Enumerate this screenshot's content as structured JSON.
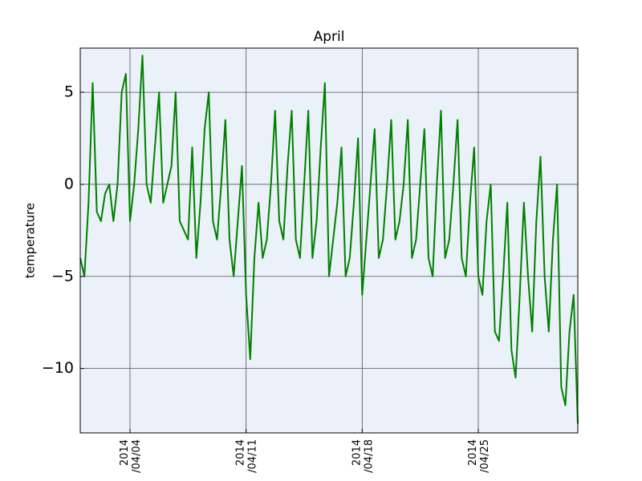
{
  "chart_data": {
    "type": "line",
    "title": "April",
    "ylabel": "temperature",
    "x": [
      "2014-04-01T00:00",
      "2014-04-01T06:00",
      "2014-04-01T12:00",
      "2014-04-01T18:00",
      "2014-04-02T00:00",
      "2014-04-02T06:00",
      "2014-04-02T12:00",
      "2014-04-02T18:00",
      "2014-04-03T00:00",
      "2014-04-03T06:00",
      "2014-04-03T12:00",
      "2014-04-03T18:00",
      "2014-04-04T00:00",
      "2014-04-04T06:00",
      "2014-04-04T12:00",
      "2014-04-04T18:00",
      "2014-04-05T00:00",
      "2014-04-05T06:00",
      "2014-04-05T12:00",
      "2014-04-05T18:00",
      "2014-04-06T00:00",
      "2014-04-06T06:00",
      "2014-04-06T12:00",
      "2014-04-06T18:00",
      "2014-04-07T00:00",
      "2014-04-07T06:00",
      "2014-04-07T12:00",
      "2014-04-07T18:00",
      "2014-04-08T00:00",
      "2014-04-08T06:00",
      "2014-04-08T12:00",
      "2014-04-08T18:00",
      "2014-04-09T00:00",
      "2014-04-09T06:00",
      "2014-04-09T12:00",
      "2014-04-09T18:00",
      "2014-04-10T00:00",
      "2014-04-10T06:00",
      "2014-04-10T12:00",
      "2014-04-10T18:00",
      "2014-04-11T00:00",
      "2014-04-11T06:00",
      "2014-04-11T12:00",
      "2014-04-11T18:00",
      "2014-04-12T00:00",
      "2014-04-12T06:00",
      "2014-04-12T12:00",
      "2014-04-12T18:00",
      "2014-04-13T00:00",
      "2014-04-13T06:00",
      "2014-04-13T12:00",
      "2014-04-13T18:00",
      "2014-04-14T00:00",
      "2014-04-14T06:00",
      "2014-04-14T12:00",
      "2014-04-14T18:00",
      "2014-04-15T00:00",
      "2014-04-15T06:00",
      "2014-04-15T12:00",
      "2014-04-15T18:00",
      "2014-04-16T00:00",
      "2014-04-16T06:00",
      "2014-04-16T12:00",
      "2014-04-16T18:00",
      "2014-04-17T00:00",
      "2014-04-17T06:00",
      "2014-04-17T12:00",
      "2014-04-17T18:00",
      "2014-04-18T00:00",
      "2014-04-18T06:00",
      "2014-04-18T12:00",
      "2014-04-18T18:00",
      "2014-04-19T00:00",
      "2014-04-19T06:00",
      "2014-04-19T12:00",
      "2014-04-19T18:00",
      "2014-04-20T00:00",
      "2014-04-20T06:00",
      "2014-04-20T12:00",
      "2014-04-20T18:00",
      "2014-04-21T00:00",
      "2014-04-21T06:00",
      "2014-04-21T12:00",
      "2014-04-21T18:00",
      "2014-04-22T00:00",
      "2014-04-22T06:00",
      "2014-04-22T12:00",
      "2014-04-22T18:00",
      "2014-04-23T00:00",
      "2014-04-23T06:00",
      "2014-04-23T12:00",
      "2014-04-23T18:00",
      "2014-04-24T00:00",
      "2014-04-24T06:00",
      "2014-04-24T12:00",
      "2014-04-24T18:00",
      "2014-04-25T00:00",
      "2014-04-25T06:00",
      "2014-04-25T12:00",
      "2014-04-25T18:00",
      "2014-04-26T00:00",
      "2014-04-26T06:00",
      "2014-04-26T12:00",
      "2014-04-26T18:00",
      "2014-04-27T00:00",
      "2014-04-27T06:00",
      "2014-04-27T12:00",
      "2014-04-27T18:00",
      "2014-04-28T00:00",
      "2014-04-28T06:00",
      "2014-04-28T12:00",
      "2014-04-28T18:00",
      "2014-04-29T00:00",
      "2014-04-29T06:00",
      "2014-04-29T12:00",
      "2014-04-29T18:00",
      "2014-04-30T00:00",
      "2014-04-30T06:00",
      "2014-04-30T12:00",
      "2014-04-30T18:00",
      "2014-05-01T00:00"
    ],
    "series": [
      {
        "color": "#008000",
        "values": [
          -4,
          -5,
          -1,
          5.5,
          -1.5,
          -2,
          -0.5,
          0,
          -2,
          0,
          5,
          6,
          -2,
          0,
          3,
          7,
          0,
          -1,
          2,
          5,
          -1,
          0,
          1,
          5,
          -2,
          -2.5,
          -3,
          2,
          -4,
          -1,
          3,
          5,
          -2,
          -3,
          0,
          3.5,
          -3,
          -5,
          -2,
          1,
          -6,
          -9.5,
          -4,
          -1,
          -4,
          -3,
          0,
          4,
          -2,
          -3,
          1,
          4,
          -3,
          -4,
          0,
          4,
          -4,
          -2,
          2,
          5.5,
          -5,
          -3,
          -1,
          2,
          -5,
          -4,
          -1,
          2.5,
          -6,
          -3,
          0,
          3,
          -4,
          -3,
          0,
          3.5,
          -3,
          -2,
          0,
          3.5,
          -4,
          -3,
          0,
          3,
          -4,
          -5,
          0,
          4,
          -4,
          -3,
          0,
          3.5,
          -4,
          -5,
          -1,
          2,
          -5,
          -6,
          -2,
          0,
          -8,
          -8.5,
          -5,
          -1,
          -9,
          -10.5,
          -6,
          -1,
          -5,
          -8,
          -2,
          1.5,
          -5,
          -8,
          -3,
          0,
          -11,
          -12,
          -8,
          -6,
          -13
        ]
      }
    ],
    "xlim": [
      "2014-04-01T00:00",
      "2014-05-01T00:00"
    ],
    "xticks": [
      {
        "value": "2014-04-04T00:00",
        "label": "2014\n/04/04"
      },
      {
        "value": "2014-04-11T00:00",
        "label": "2014\n/04/11"
      },
      {
        "value": "2014-04-18T00:00",
        "label": "2014\n/04/18"
      },
      {
        "value": "2014-04-25T00:00",
        "label": "2014\n/04/25"
      }
    ],
    "ylim": [
      -13.5,
      7.4
    ],
    "yticks": [
      {
        "value": -10,
        "label": "−10"
      },
      {
        "value": -5,
        "label": "−5"
      },
      0,
      5
    ],
    "grid": true
  }
}
